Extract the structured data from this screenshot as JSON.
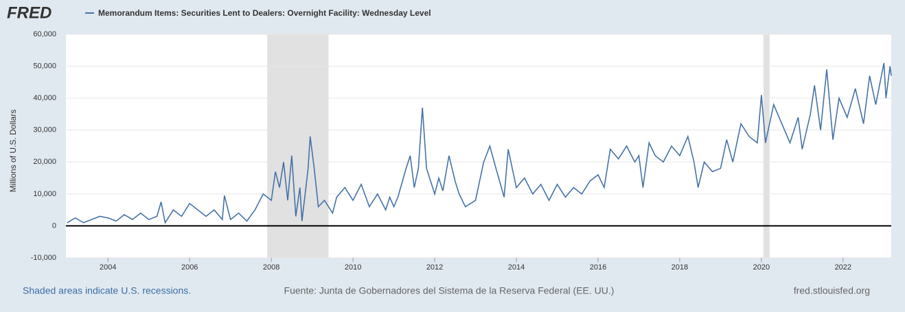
{
  "chart_data": {
    "type": "line",
    "logo": "FRED",
    "title": "Memorandum Items: Securities Lent to Dealers: Overnight Facility: Wednesday Level",
    "y_label": "Millions of U.S. Dollars",
    "note": "Shaded areas indicate U.S. recessions.",
    "source": "Fuente: Junta de Gobernadores del Sistema de la Reserva Federal (EE. UU.)",
    "site": "fred.stlouisfed.org",
    "xlim": [
      2002.97,
      2023.18
    ],
    "xticks": [
      2004,
      2006,
      2008,
      2010,
      2012,
      2014,
      2016,
      2018,
      2020,
      2022
    ],
    "ylim": [
      -10000,
      60000
    ],
    "yticks": [
      {
        "value": -10000,
        "label": "-10,000"
      },
      0,
      {
        "value": 10000,
        "label": "10,000"
      },
      {
        "value": 20000,
        "label": "20,000"
      },
      {
        "value": 30000,
        "label": "30,000"
      },
      {
        "value": 40000,
        "label": "40,000"
      },
      {
        "value": 50000,
        "label": "50,000"
      },
      {
        "value": 60000,
        "label": "60,000"
      }
    ],
    "grid": true,
    "recessions": [
      [
        2007.9,
        2009.4
      ],
      [
        2020.05,
        2020.2
      ]
    ],
    "series": [
      {
        "name": "Memorandum Items: Securities Lent to Dealers: Overnight Facility: Wednesday Level",
        "color": "#4572a7",
        "x": [
          2003.0,
          2003.2,
          2003.4,
          2003.6,
          2003.8,
          2004.0,
          2004.2,
          2004.4,
          2004.6,
          2004.8,
          2005.0,
          2005.2,
          2005.3,
          2005.4,
          2005.6,
          2005.8,
          2006.0,
          2006.2,
          2006.4,
          2006.6,
          2006.8,
          2006.85,
          2007.0,
          2007.2,
          2007.4,
          2007.6,
          2007.8,
          2008.0,
          2008.1,
          2008.2,
          2008.3,
          2008.4,
          2008.5,
          2008.6,
          2008.7,
          2008.75,
          2008.9,
          2008.95,
          2009.05,
          2009.15,
          2009.3,
          2009.5,
          2009.6,
          2009.8,
          2010.0,
          2010.2,
          2010.4,
          2010.6,
          2010.8,
          2010.9,
          2011.0,
          2011.1,
          2011.3,
          2011.4,
          2011.5,
          2011.6,
          2011.7,
          2011.8,
          2012.0,
          2012.1,
          2012.2,
          2012.35,
          2012.5,
          2012.6,
          2012.75,
          2013.0,
          2013.2,
          2013.35,
          2013.5,
          2013.7,
          2013.8,
          2014.0,
          2014.2,
          2014.4,
          2014.6,
          2014.8,
          2015.0,
          2015.2,
          2015.4,
          2015.6,
          2015.8,
          2016.0,
          2016.15,
          2016.3,
          2016.5,
          2016.7,
          2016.9,
          2017.0,
          2017.1,
          2017.25,
          2017.4,
          2017.6,
          2017.8,
          2018.0,
          2018.2,
          2018.35,
          2018.45,
          2018.6,
          2018.8,
          2019.0,
          2019.15,
          2019.3,
          2019.5,
          2019.7,
          2019.9,
          2020.0,
          2020.1,
          2020.3,
          2020.5,
          2020.7,
          2020.9,
          2021.0,
          2021.2,
          2021.3,
          2021.45,
          2021.6,
          2021.75,
          2021.9,
          2022.1,
          2022.3,
          2022.5,
          2022.65,
          2022.8,
          2023.0,
          2023.05,
          2023.15,
          2023.18
        ],
        "values": [
          1000,
          2500,
          1000,
          2000,
          3000,
          2500,
          1500,
          3500,
          2000,
          4000,
          2000,
          3000,
          7500,
          1000,
          5000,
          3000,
          7000,
          5000,
          3000,
          5000,
          2000,
          9500,
          2000,
          4000,
          1500,
          5000,
          10000,
          8000,
          17000,
          12000,
          20000,
          8000,
          22000,
          3000,
          12000,
          1500,
          18000,
          28000,
          18000,
          6000,
          8000,
          4000,
          9000,
          12000,
          8000,
          13000,
          6000,
          10000,
          5000,
          9000,
          6000,
          9000,
          18000,
          22000,
          12000,
          18000,
          37000,
          18000,
          10000,
          15000,
          11000,
          22000,
          14000,
          10000,
          6000,
          8000,
          20000,
          25000,
          18000,
          9000,
          24000,
          12000,
          15000,
          10000,
          13000,
          8000,
          13000,
          9000,
          12000,
          10000,
          14000,
          16000,
          12000,
          24000,
          21000,
          25000,
          20000,
          22000,
          12000,
          26000,
          22000,
          20000,
          25000,
          22000,
          28000,
          20000,
          12000,
          20000,
          17000,
          18000,
          27000,
          20000,
          32000,
          28000,
          26000,
          41000,
          26000,
          38000,
          32000,
          26000,
          34000,
          24000,
          35000,
          44000,
          30000,
          49000,
          27000,
          40000,
          34000,
          43000,
          32000,
          47000,
          38000,
          51000,
          40000,
          50000,
          47000
        ]
      }
    ]
  }
}
